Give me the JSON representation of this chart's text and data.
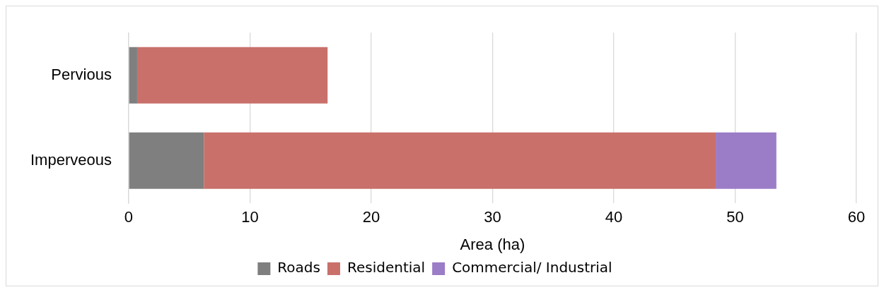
{
  "chart_data": {
    "type": "bar",
    "orientation": "horizontal",
    "stacked": true,
    "xlabel": "Area (ha)",
    "categories": [
      "Pervious",
      "Imperveous"
    ],
    "series": [
      {
        "name": "Roads",
        "color": "#7f7f7f",
        "values": [
          0.7,
          6.2
        ]
      },
      {
        "name": "Residential",
        "color": "#c9706b",
        "values": [
          15.7,
          42.2
        ]
      },
      {
        "name": "Commercial/ Industrial",
        "color": "#9b7cc6",
        "values": [
          null,
          5.0
        ]
      }
    ],
    "xlim": [
      0,
      60
    ],
    "xticks": [
      0,
      10,
      20,
      30,
      40,
      50,
      60
    ],
    "grid": "x",
    "legend": "bottom"
  }
}
